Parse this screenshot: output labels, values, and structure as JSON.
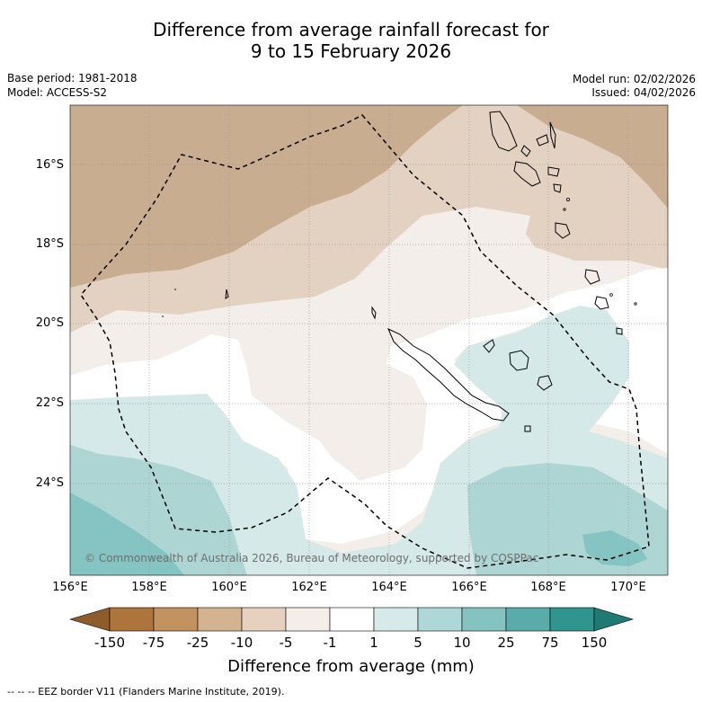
{
  "title": {
    "line1": "Difference from average rainfall forecast for",
    "line2": "9 to 15 February 2026"
  },
  "meta": {
    "base_period": "Base period: 1981-2018",
    "model": "Model: ACCESS-S2",
    "model_run": "Model run: 02/02/2026",
    "issued": "Issued: 04/02/2026"
  },
  "map": {
    "lat_labels": [
      "16°S",
      "18°S",
      "20°S",
      "22°S",
      "24°S"
    ],
    "lon_labels": [
      "156°E",
      "158°E",
      "160°E",
      "162°E",
      "164°E",
      "166°E",
      "168°E",
      "170°E"
    ],
    "copyright": "© Commonwealth of Australia 2026, Bureau of Meteorology, supported by COSPPac",
    "colors": {
      "dry_strong": "#c9ad91",
      "dry": "#e3d2c2",
      "dry_light": "#f3eee9",
      "neutral": "#ffffff",
      "wet_light": "#d5e9e8",
      "wet": "#acd5d4",
      "wet_strong": "#84c4c2"
    }
  },
  "colorbar": {
    "ticks": [
      "-150",
      "-75",
      "-25",
      "-10",
      "-5",
      "-1",
      "1",
      "5",
      "10",
      "25",
      "75",
      "150"
    ],
    "colors": [
      "#ad743b",
      "#c2925f",
      "#d4b391",
      "#e6d1bf",
      "#f4ede8",
      "#ffffff",
      "#d6eae9",
      "#aed8d7",
      "#85c3c1",
      "#5aacaa",
      "#30958f"
    ],
    "extend_low": "#8e5c2b",
    "extend_high": "#1e7a72",
    "label": "Difference from average (mm)"
  },
  "footer": {
    "legend_text": "--  --  -- EEZ border V11 (Flanders Marine Institute, 2019)."
  }
}
